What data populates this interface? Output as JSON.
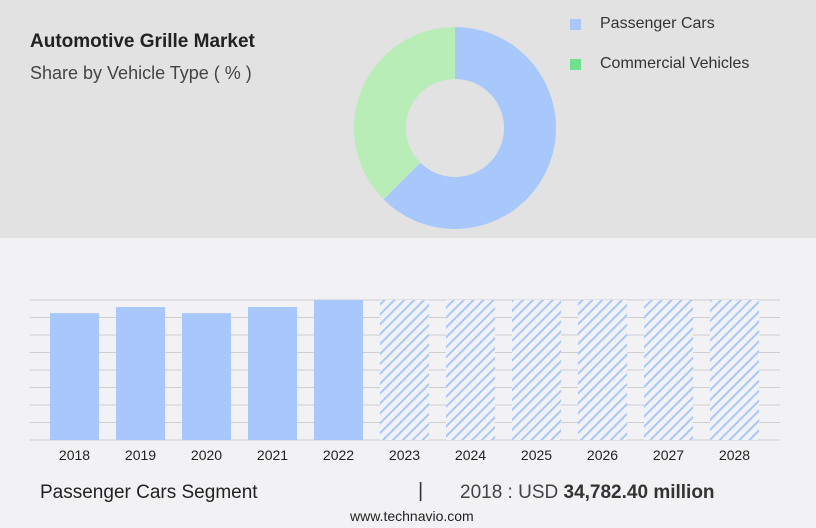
{
  "header": {
    "title": "Automotive Grille Market",
    "subtitle": "Share by Vehicle Type ( % )"
  },
  "chart_data": [
    {
      "type": "pie",
      "subtype": "donut",
      "title": "Automotive Grille Market",
      "subtitle": "Share by Vehicle Type ( % )",
      "slices": [
        {
          "name": "Passenger Cars",
          "value": 62.5,
          "color": "#a8c8fc"
        },
        {
          "name": "Commercial Vehicles",
          "value": 37.5,
          "color": "#b8edb8"
        }
      ],
      "legend_colors": {
        "Passenger Cars": "#a8c8fc",
        "Commercial Vehicles": "#6ee08e"
      },
      "legend": "right"
    },
    {
      "type": "bar",
      "categories": [
        "2018",
        "2019",
        "2020",
        "2021",
        "2022",
        "2023",
        "2024",
        "2025",
        "2026",
        "2027",
        "2028"
      ],
      "values": [
        7.25,
        7.6,
        7.25,
        7.6,
        8,
        8,
        8,
        8,
        8,
        8,
        8
      ],
      "forecast_from": "2023",
      "ylim": [
        0,
        8
      ],
      "grid": true,
      "y_tick_labels_shown": false,
      "color": "#a8c8fc"
    }
  ],
  "footer": {
    "segment": "Passenger Cars Segment",
    "separator": "|",
    "year_label": "2018 : USD",
    "value": "34,782.40 million",
    "site": "www.technavio.com"
  }
}
